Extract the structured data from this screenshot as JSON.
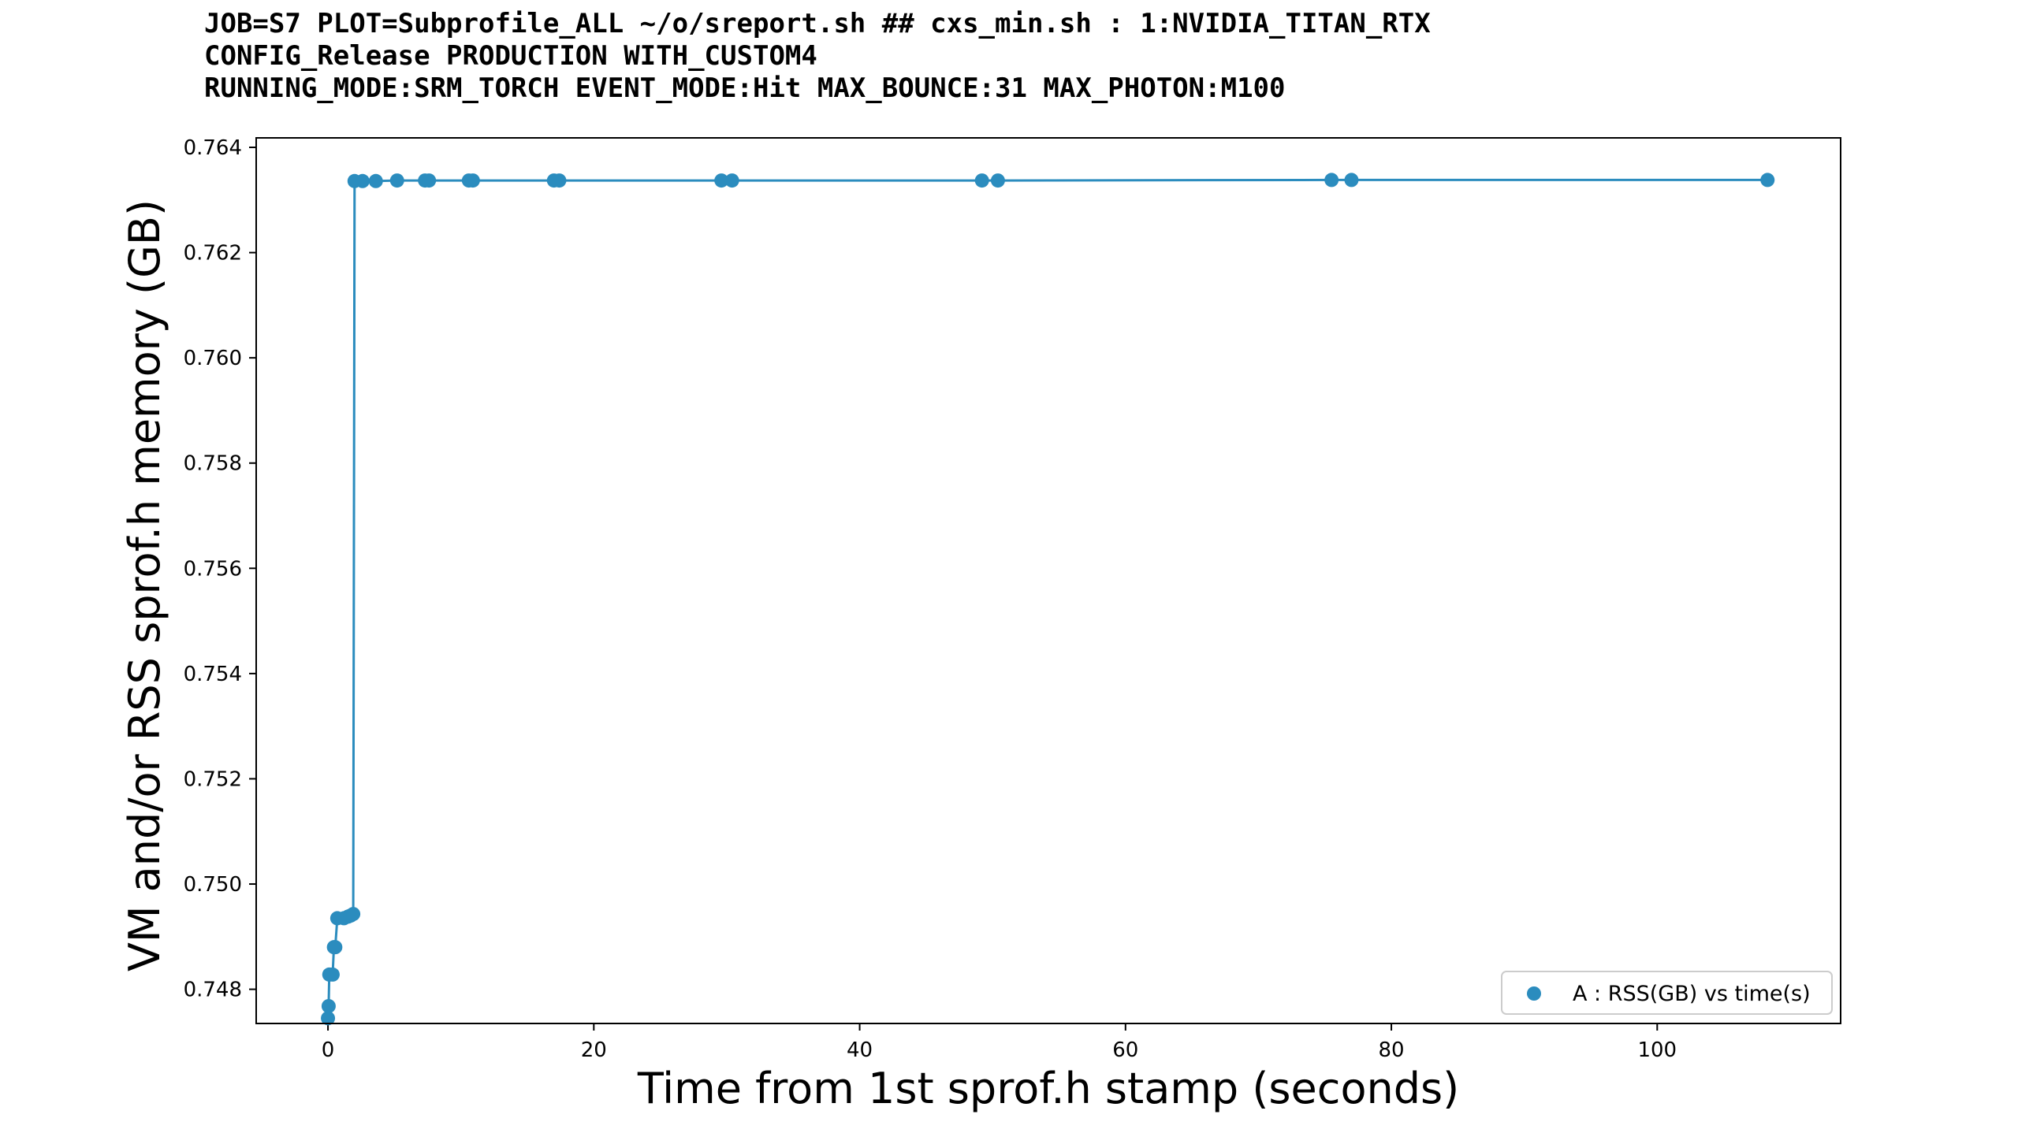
{
  "chart_data": {
    "type": "line",
    "title_lines": [
      "JOB=S7 PLOT=Subprofile_ALL ~/o/sreport.sh ## cxs_min.sh : 1:NVIDIA_TITAN_RTX",
      "CONFIG_Release PRODUCTION WITH_CUSTOM4",
      "RUNNING_MODE:SRM_TORCH EVENT_MODE:Hit MAX_BOUNCE:31 MAX_PHOTON:M100"
    ],
    "xlabel": "Time from 1st sprof.h stamp (seconds)",
    "ylabel": "VM and/or RSS sprof.h memory (GB)",
    "xlim": [
      -5.4,
      113.8
    ],
    "ylim": [
      0.74735,
      0.76418
    ],
    "xticks": [
      0,
      20,
      40,
      60,
      80,
      100
    ],
    "xtick_labels": [
      "0",
      "20",
      "40",
      "60",
      "80",
      "100"
    ],
    "yticks": [
      0.748,
      0.75,
      0.752,
      0.754,
      0.756,
      0.758,
      0.76,
      0.762,
      0.764
    ],
    "ytick_labels": [
      "0.748",
      "0.750",
      "0.752",
      "0.754",
      "0.756",
      "0.758",
      "0.760",
      "0.762",
      "0.764"
    ],
    "grid": false,
    "legend": {
      "position": "lower-right",
      "entries": [
        {
          "label": "A : RSS(GB) vs time(s)",
          "marker": "circle",
          "color": "#2b8cbe"
        }
      ]
    },
    "series": [
      {
        "name": "A : RSS(GB) vs time(s)",
        "color": "#2b8cbe",
        "x": [
          0.0,
          0.05,
          0.1,
          0.35,
          0.45,
          0.55,
          0.7,
          1.2,
          1.5,
          1.7,
          1.9,
          2.0,
          2.6,
          3.6,
          5.2,
          7.3,
          7.6,
          10.6,
          10.9,
          17.0,
          17.4,
          29.6,
          30.4,
          49.2,
          50.4,
          75.5,
          77.0,
          108.3
        ],
        "y": [
          0.74745,
          0.74768,
          0.74828,
          0.74828,
          0.7488,
          0.7488,
          0.74935,
          0.74935,
          0.74938,
          0.7494,
          0.74943,
          0.76336,
          0.76336,
          0.76336,
          0.76337,
          0.76337,
          0.76337,
          0.76337,
          0.76337,
          0.76337,
          0.76337,
          0.76337,
          0.76337,
          0.76337,
          0.76337,
          0.76338,
          0.76338,
          0.76338
        ]
      }
    ]
  }
}
